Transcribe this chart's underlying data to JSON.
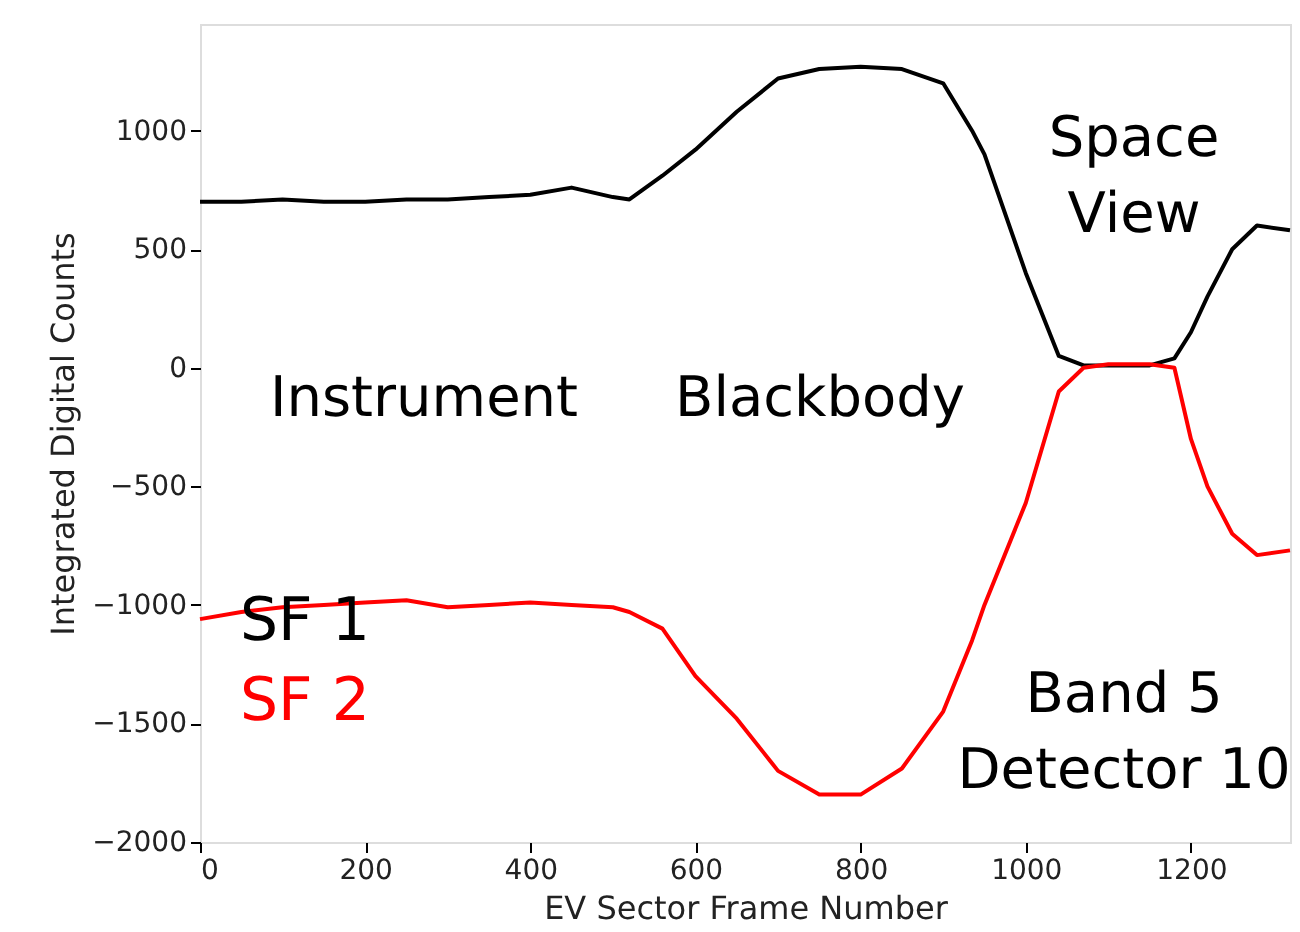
{
  "chart_data": {
    "type": "line",
    "xlabel": "EV Sector Frame Number",
    "ylabel": "Integrated Digital Counts",
    "x": [
      0,
      50,
      100,
      150,
      200,
      250,
      300,
      350,
      400,
      450,
      500,
      520,
      560,
      600,
      650,
      700,
      750,
      800,
      850,
      900,
      935,
      950,
      1000,
      1040,
      1070,
      1100,
      1150,
      1180,
      1200,
      1220,
      1250,
      1280,
      1320
    ],
    "series": [
      {
        "name": "SF 1",
        "color": "#000000",
        "values": [
          700,
          700,
          710,
          700,
          700,
          710,
          710,
          720,
          730,
          760,
          720,
          710,
          810,
          920,
          1080,
          1220,
          1260,
          1270,
          1260,
          1200,
          1000,
          900,
          400,
          50,
          10,
          10,
          10,
          40,
          150,
          300,
          500,
          600,
          580
        ]
      },
      {
        "name": "SF 2",
        "color": "#ff0000",
        "values": [
          -1060,
          -1030,
          -1010,
          -1000,
          -990,
          -980,
          -1010,
          -1000,
          -990,
          -1000,
          -1010,
          -1030,
          -1100,
          -1300,
          -1480,
          -1700,
          -1800,
          -1800,
          -1690,
          -1450,
          -1150,
          -1000,
          -570,
          -100,
          0,
          15,
          15,
          0,
          -300,
          -500,
          -700,
          -790,
          -770
        ]
      }
    ],
    "xlim": [
      0,
      1320
    ],
    "ylim": [
      -2000,
      1450
    ],
    "xticks": [
      0,
      200,
      400,
      600,
      800,
      1000,
      1200
    ],
    "yticks": [
      -2000,
      -1500,
      -1000,
      -500,
      0,
      500,
      1000
    ],
    "grid": false,
    "legend": "bottom left",
    "marker": "none",
    "line_style": "solid",
    "annotations": [
      "Instrument",
      "Blackbody",
      "Space\nView",
      "Band 5\nDetector 10"
    ]
  }
}
